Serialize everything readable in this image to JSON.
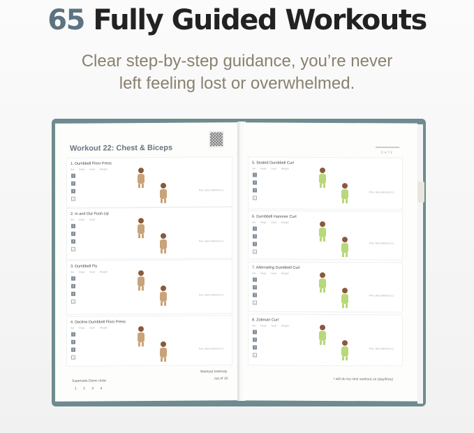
{
  "headline": {
    "number": "65",
    "text": "Fully Guided Workouts"
  },
  "subtitle": {
    "line1": "Clear step-by-step guidance, you’re never",
    "line2": "left feeling lost or overwhelmed."
  },
  "colors": {
    "accent": "#5c7382",
    "subtitle": "#8a806f",
    "cover": "#6f8b8f",
    "figure_outfit_left": "#c9a37a",
    "figure_outfit_right": "#b8d87a"
  },
  "left_page": {
    "title": "Workout 22: Chest & Biceps",
    "exercises": [
      {
        "name": "1. Dumbbell Floor Press",
        "columns": "Set Reps Goal Weight",
        "sets": [
          "1",
          "2",
          "3",
          "+"
        ],
        "prev": "Prev. Best (Workout 1)"
      },
      {
        "name": "2. In and Out Push-Up",
        "columns": "Set Reps Goal",
        "sets": [
          "1",
          "2",
          "3",
          "+"
        ],
        "prev": "Prev. Best (Workout 1)"
      },
      {
        "name": "3. Dumbbell Fly",
        "columns": "Set Reps Goal Weight",
        "sets": [
          "1",
          "2",
          "3",
          "+"
        ],
        "prev": "Prev. Best (Workout 1)"
      },
      {
        "name": "4. Decline Dumbbell Floor Press",
        "columns": "Set Reps Goal Weight",
        "sets": [
          "1",
          "2",
          "3",
          "+"
        ],
        "prev": "Prev. Best (Workout 1)"
      }
    ],
    "supersets_label": "Supersets Done circle",
    "supersets": [
      "1",
      "2",
      "3",
      "4"
    ],
    "intensity_label": "Workout Intensity",
    "intensity_scale": "out of 10"
  },
  "right_page": {
    "date_label": "DATE",
    "exercises": [
      {
        "name": "5. Seated Dumbbell Curl",
        "columns": "Set Reps Goal Weight",
        "sets": [
          "1",
          "2",
          "3",
          "+"
        ],
        "prev": "Prev. Best (Workout 1)"
      },
      {
        "name": "6. Dumbbell Hammer Curl",
        "columns": "Set Reps Goal Weight",
        "sets": [
          "1",
          "2",
          "3",
          "+"
        ],
        "prev": "Prev. Best (Workout 1)"
      },
      {
        "name": "7. Alternating Dumbbell Curl",
        "columns": "Set Reps Goal Weight",
        "sets": [
          "1",
          "2",
          "3",
          "+"
        ],
        "prev": "Prev. Best (Workout 1)"
      },
      {
        "name": "8. Zottman Curl",
        "columns": "Set Reps Goal Weight",
        "sets": [
          "1",
          "2",
          "3",
          "+"
        ],
        "prev": "Prev. Best (Workout 1)"
      }
    ],
    "next_workout": "I will do my next workout on (day/time)"
  }
}
